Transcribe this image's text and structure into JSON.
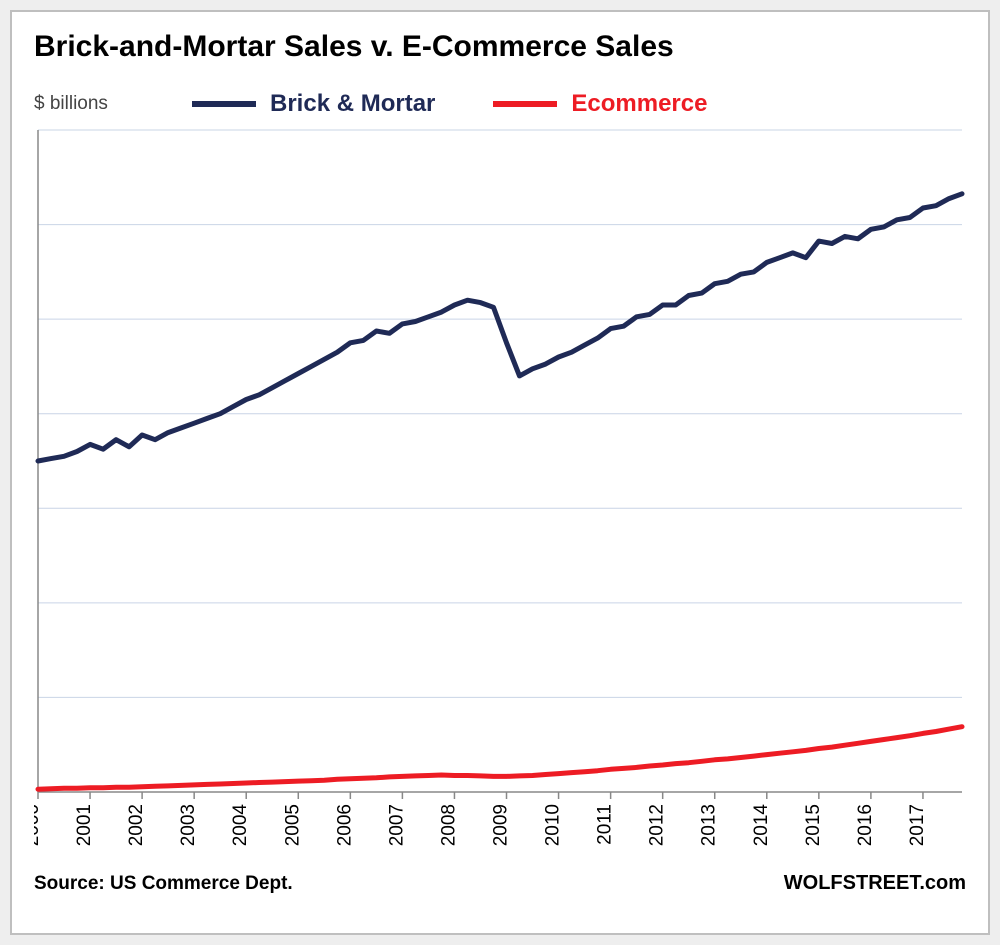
{
  "chart": {
    "type": "line",
    "title": "Brick-and-Mortar Sales v. E-Commerce Sales",
    "y_axis_label": "$ billions",
    "source_label": "Source: US Commerce Dept.",
    "brand": "WOLFSTREET.com",
    "background_color": "#ffffff",
    "outer_background": "#eeeeee",
    "border_color": "#bfbfbf",
    "grid_color": "#c9d4e6",
    "axis_color": "#888888",
    "title_fontsize": 30,
    "label_fontsize": 19,
    "legend_fontsize": 24,
    "tick_fontsize": 19,
    "line_width": 5,
    "x_range": [
      2000,
      2017.75
    ],
    "y_range": [
      0,
      1400
    ],
    "y_gridlines": [
      0,
      200,
      400,
      600,
      800,
      1000,
      1200,
      1400
    ],
    "x_ticks": [
      2000,
      2001,
      2002,
      2003,
      2004,
      2005,
      2006,
      2007,
      2008,
      2009,
      2010,
      2011,
      2012,
      2013,
      2014,
      2015,
      2016,
      2017
    ],
    "legend": {
      "items": [
        {
          "label": "Brick & Mortar",
          "color": "#1f2a56"
        },
        {
          "label": "Ecommerce",
          "color": "#ed1c24"
        }
      ]
    },
    "series": [
      {
        "name": "brick_and_mortar",
        "color": "#1f2a56",
        "x": [
          2000,
          2000.25,
          2000.5,
          2000.75,
          2001,
          2001.25,
          2001.5,
          2001.75,
          2002,
          2002.25,
          2002.5,
          2002.75,
          2003,
          2003.25,
          2003.5,
          2003.75,
          2004,
          2004.25,
          2004.5,
          2004.75,
          2005,
          2005.25,
          2005.5,
          2005.75,
          2006,
          2006.25,
          2006.5,
          2006.75,
          2007,
          2007.25,
          2007.5,
          2007.75,
          2008,
          2008.25,
          2008.5,
          2008.75,
          2009,
          2009.25,
          2009.5,
          2009.75,
          2010,
          2010.25,
          2010.5,
          2010.75,
          2011,
          2011.25,
          2011.5,
          2011.75,
          2012,
          2012.25,
          2012.5,
          2012.75,
          2013,
          2013.25,
          2013.5,
          2013.75,
          2014,
          2014.25,
          2014.5,
          2014.75,
          2015,
          2015.25,
          2015.5,
          2015.75,
          2016,
          2016.25,
          2016.5,
          2016.75,
          2017,
          2017.25,
          2017.5,
          2017.75
        ],
        "y": [
          700,
          705,
          710,
          720,
          735,
          725,
          745,
          730,
          755,
          745,
          760,
          770,
          780,
          790,
          800,
          815,
          830,
          840,
          855,
          870,
          885,
          900,
          915,
          930,
          950,
          955,
          975,
          970,
          990,
          995,
          1005,
          1015,
          1030,
          1040,
          1035,
          1025,
          950,
          880,
          895,
          905,
          920,
          930,
          945,
          960,
          980,
          985,
          1005,
          1010,
          1030,
          1030,
          1050,
          1055,
          1075,
          1080,
          1095,
          1100,
          1120,
          1130,
          1140,
          1130,
          1165,
          1160,
          1175,
          1170,
          1190,
          1195,
          1210,
          1215,
          1235,
          1240,
          1255,
          1265
        ]
      },
      {
        "name": "ecommerce",
        "color": "#ed1c24",
        "x": [
          2000,
          2000.25,
          2000.5,
          2000.75,
          2001,
          2001.25,
          2001.5,
          2001.75,
          2002,
          2002.25,
          2002.5,
          2002.75,
          2003,
          2003.25,
          2003.5,
          2003.75,
          2004,
          2004.25,
          2004.5,
          2004.75,
          2005,
          2005.25,
          2005.5,
          2005.75,
          2006,
          2006.25,
          2006.5,
          2006.75,
          2007,
          2007.25,
          2007.5,
          2007.75,
          2008,
          2008.25,
          2008.5,
          2008.75,
          2009,
          2009.25,
          2009.5,
          2009.75,
          2010,
          2010.25,
          2010.5,
          2010.75,
          2011,
          2011.25,
          2011.5,
          2011.75,
          2012,
          2012.25,
          2012.5,
          2012.75,
          2013,
          2013.25,
          2013.5,
          2013.75,
          2014,
          2014.25,
          2014.5,
          2014.75,
          2015,
          2015.25,
          2015.5,
          2015.75,
          2016,
          2016.25,
          2016.5,
          2016.75,
          2017,
          2017.25,
          2017.5,
          2017.75
        ],
        "y": [
          6,
          7,
          8,
          8,
          9,
          9,
          10,
          10,
          11,
          12,
          13,
          14,
          15,
          16,
          17,
          18,
          19,
          20,
          21,
          22,
          23,
          24,
          25,
          27,
          28,
          29,
          30,
          32,
          33,
          34,
          35,
          36,
          35,
          35,
          34,
          33,
          33,
          34,
          35,
          37,
          39,
          41,
          43,
          45,
          48,
          50,
          52,
          55,
          57,
          60,
          62,
          65,
          68,
          70,
          73,
          76,
          79,
          82,
          85,
          88,
          92,
          95,
          99,
          103,
          107,
          111,
          115,
          119,
          124,
          128,
          133,
          138
        ]
      }
    ]
  }
}
